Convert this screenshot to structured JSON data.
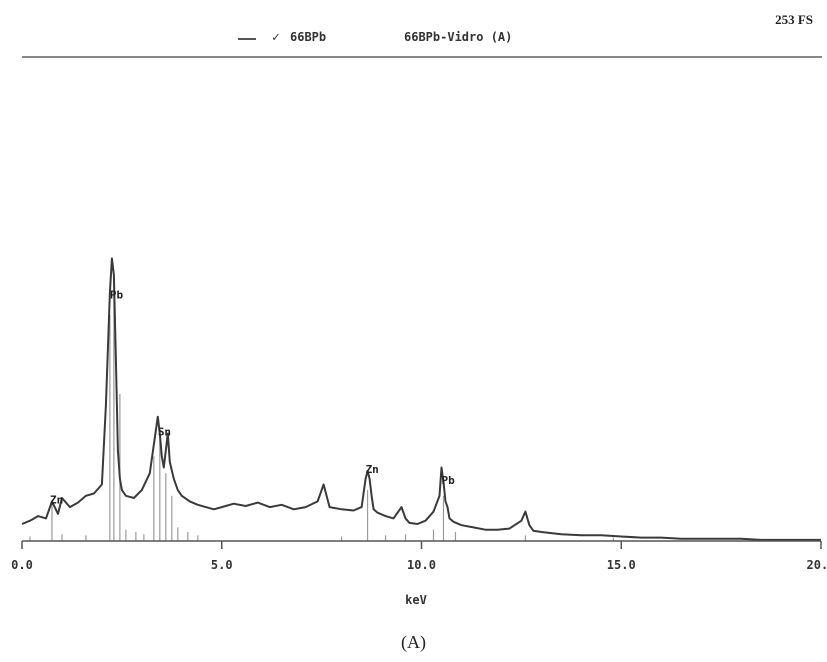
{
  "header": {
    "legend_mark": "✓",
    "series_name": "66BPb",
    "sample_name": "66BPb-Vidro (A)",
    "full_scale": "253 FS"
  },
  "panel_label": "(A)",
  "chart_data": {
    "type": "line",
    "title": "",
    "xlabel": "keV",
    "ylabel": "",
    "xlim": [
      0.0,
      20.0
    ],
    "ylim": [
      0,
      253
    ],
    "x_ticks": [
      "0.0",
      "5.0",
      "10.0",
      "15.0",
      "20.0"
    ],
    "grid": false,
    "series": [
      {
        "name": "66BPb",
        "x": [
          0.0,
          0.2,
          0.4,
          0.6,
          0.75,
          0.9,
          1.0,
          1.2,
          1.4,
          1.6,
          1.8,
          2.0,
          2.1,
          2.2,
          2.25,
          2.3,
          2.35,
          2.4,
          2.45,
          2.5,
          2.6,
          2.8,
          3.0,
          3.2,
          3.3,
          3.4,
          3.45,
          3.5,
          3.55,
          3.6,
          3.65,
          3.7,
          3.8,
          3.9,
          4.0,
          4.2,
          4.4,
          4.6,
          4.8,
          5.0,
          5.3,
          5.6,
          5.9,
          6.2,
          6.5,
          6.8,
          7.1,
          7.4,
          7.55,
          7.7,
          8.0,
          8.3,
          8.5,
          8.6,
          8.65,
          8.7,
          8.75,
          8.8,
          8.9,
          9.1,
          9.3,
          9.5,
          9.6,
          9.7,
          9.9,
          10.1,
          10.3,
          10.45,
          10.5,
          10.55,
          10.6,
          10.65,
          10.7,
          10.8,
          11.0,
          11.3,
          11.6,
          11.9,
          12.2,
          12.5,
          12.6,
          12.7,
          12.8,
          13.0,
          13.5,
          14.0,
          14.5,
          15.0,
          15.5,
          16.0,
          16.5,
          17.0,
          17.5,
          18.0,
          18.5,
          19.0,
          19.5,
          20.0
        ],
        "y": [
          15,
          18,
          22,
          20,
          35,
          24,
          38,
          30,
          34,
          40,
          42,
          50,
          120,
          220,
          250,
          235,
          160,
          80,
          55,
          45,
          40,
          38,
          45,
          60,
          85,
          110,
          95,
          75,
          65,
          80,
          95,
          70,
          55,
          45,
          40,
          35,
          32,
          30,
          28,
          30,
          33,
          31,
          34,
          30,
          32,
          28,
          30,
          35,
          50,
          30,
          28,
          27,
          30,
          55,
          62,
          55,
          40,
          28,
          25,
          22,
          20,
          30,
          20,
          16,
          15,
          18,
          26,
          40,
          65,
          52,
          35,
          30,
          20,
          17,
          14,
          12,
          10,
          10,
          11,
          18,
          26,
          14,
          9,
          8,
          6,
          5,
          5,
          4,
          3,
          3,
          2,
          2,
          2,
          2,
          1,
          1,
          1,
          1
        ]
      }
    ],
    "element_markers": [
      {
        "label": "Zn",
        "x": 0.75
      },
      {
        "label": "Pb",
        "x": 2.25
      },
      {
        "label": "Sn",
        "x": 3.45
      },
      {
        "label": "Zn",
        "x": 8.65
      },
      {
        "label": "Pb",
        "x": 10.55
      }
    ],
    "reference_lines": [
      {
        "x": 0.2,
        "y": 4
      },
      {
        "x": 0.75,
        "y": 35
      },
      {
        "x": 1.0,
        "y": 6
      },
      {
        "x": 1.6,
        "y": 5
      },
      {
        "x": 2.2,
        "y": 200
      },
      {
        "x": 2.3,
        "y": 240
      },
      {
        "x": 2.45,
        "y": 130
      },
      {
        "x": 2.6,
        "y": 10
      },
      {
        "x": 2.85,
        "y": 8
      },
      {
        "x": 3.05,
        "y": 6
      },
      {
        "x": 3.3,
        "y": 75
      },
      {
        "x": 3.45,
        "y": 90
      },
      {
        "x": 3.6,
        "y": 60
      },
      {
        "x": 3.75,
        "y": 40
      },
      {
        "x": 3.9,
        "y": 12
      },
      {
        "x": 4.15,
        "y": 8
      },
      {
        "x": 4.4,
        "y": 5
      },
      {
        "x": 8.0,
        "y": 4
      },
      {
        "x": 8.65,
        "y": 45
      },
      {
        "x": 9.1,
        "y": 5
      },
      {
        "x": 9.6,
        "y": 6
      },
      {
        "x": 10.3,
        "y": 10
      },
      {
        "x": 10.55,
        "y": 40
      },
      {
        "x": 10.85,
        "y": 8
      },
      {
        "x": 12.6,
        "y": 5
      },
      {
        "x": 14.8,
        "y": 3
      }
    ]
  }
}
